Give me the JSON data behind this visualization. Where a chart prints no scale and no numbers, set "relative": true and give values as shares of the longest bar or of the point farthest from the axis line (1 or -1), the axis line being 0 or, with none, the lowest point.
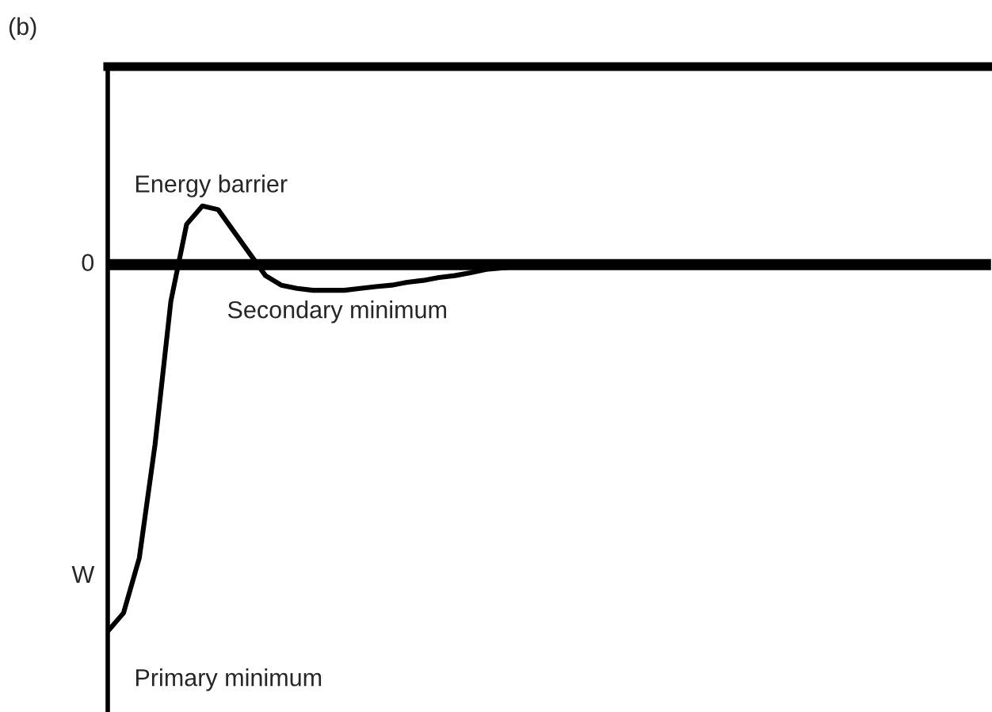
{
  "chart_data": {
    "type": "line",
    "title": "(b)",
    "ylabel": "W",
    "relative": true,
    "categories": [
      null,
      null,
      null,
      null,
      null,
      null,
      null,
      null,
      null,
      null,
      null,
      null,
      null,
      null,
      null,
      null,
      null,
      null,
      null,
      null,
      null,
      null,
      null,
      null,
      null,
      null,
      null,
      null,
      null,
      null,
      null,
      null,
      null,
      null,
      null,
      null,
      null,
      null,
      null,
      null,
      null,
      null,
      null,
      null,
      null,
      null,
      null,
      null,
      null,
      null,
      null,
      null,
      null,
      null,
      null,
      null,
      null
    ],
    "series": [
      {
        "color": "#000000",
        "values": [
          -1.0,
          -0.95,
          -0.8,
          -0.49,
          -0.1,
          0.11,
          0.16,
          0.15,
          0.09,
          0.03,
          -0.03,
          -0.056,
          -0.065,
          -0.07,
          -0.07,
          -0.07,
          -0.065,
          -0.06,
          -0.056,
          -0.048,
          -0.043,
          -0.035,
          -0.03,
          -0.022,
          -0.013,
          -0.009,
          -0.004,
          null,
          null,
          null,
          null,
          null,
          null,
          null,
          null,
          null,
          null,
          null,
          null,
          null,
          null,
          null,
          null,
          null,
          null,
          null,
          null,
          null,
          null,
          null,
          null,
          null,
          null,
          null,
          null,
          null,
          null
        ]
      }
    ],
    "ref_lines": [
      {
        "axis": "y",
        "value": 0,
        "label": "0",
        "color": "#000000"
      }
    ],
    "annotations": [
      "Energy barrier",
      "Secondary minimum",
      "Primary minimum"
    ],
    "legend": false,
    "marker": "none",
    "line_style": "solid"
  }
}
